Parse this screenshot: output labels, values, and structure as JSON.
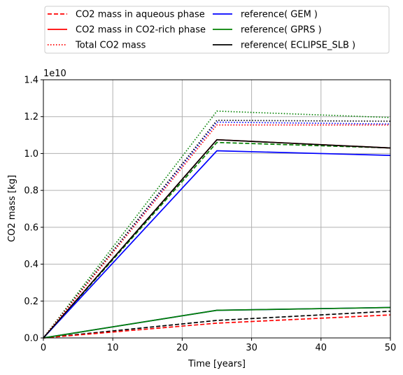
{
  "chart_data": {
    "type": "line",
    "xlabel": "Time [years]",
    "ylabel": "CO2 mass [kg]",
    "y_offset_text": "1e10",
    "xlim": [
      0,
      50
    ],
    "ylim": [
      0,
      1.4
    ],
    "xticks": [
      "0",
      "10",
      "20",
      "30",
      "40",
      "50"
    ],
    "yticks": [
      "0.0",
      "0.2",
      "0.4",
      "0.6",
      "0.8",
      "1.0",
      "1.2",
      "1.4"
    ],
    "grid": true,
    "legend_position": "top, above plot, two columns",
    "series": [
      {
        "name": "CO2 mass in aqueous phase",
        "color": "#ff0000",
        "style": "dashed",
        "x": [
          0,
          25,
          50
        ],
        "y": [
          0.0,
          0.08,
          0.125
        ]
      },
      {
        "name": "CO2 mass in CO2-rich phase",
        "color": "#ff0000",
        "style": "solid",
        "x": [
          0,
          25,
          50
        ],
        "y": [
          0.0,
          1.075,
          1.03
        ]
      },
      {
        "name": "Total CO2 mass",
        "color": "#ff0000",
        "style": "dotted",
        "x": [
          0,
          25,
          50
        ],
        "y": [
          0.0,
          1.155,
          1.155
        ]
      },
      {
        "name": "reference( GEM )",
        "color": "#0000ff",
        "style": "solid",
        "x": [
          0,
          25,
          50
        ],
        "y": [
          0.0,
          1.015,
          0.99
        ]
      },
      {
        "name": "reference( GPRS )",
        "color": "#008000",
        "style": "solid",
        "x": [
          0,
          25,
          50
        ],
        "y": [
          0.0,
          0.15,
          0.165
        ]
      },
      {
        "name": "reference( ECLIPSE_SLB )",
        "color": "#000000",
        "style": "solid",
        "x": [
          0,
          25,
          50
        ],
        "y": [
          0.0,
          1.075,
          1.03
        ]
      }
    ],
    "unlabeled_series": [
      {
        "color": "#0000ff",
        "style": "solid",
        "x": [
          0,
          25,
          50
        ],
        "y": [
          0.0,
          0.15,
          0.165
        ]
      },
      {
        "color": "#0000ff",
        "style": "dotted",
        "x": [
          0,
          25,
          50
        ],
        "y": [
          0.0,
          1.17,
          1.16
        ]
      },
      {
        "color": "#008000",
        "style": "dashed",
        "x": [
          0,
          25,
          50
        ],
        "y": [
          0.0,
          1.06,
          1.03
        ]
      },
      {
        "color": "#008000",
        "style": "dotted",
        "x": [
          0,
          25,
          50
        ],
        "y": [
          0.0,
          1.23,
          1.195
        ]
      },
      {
        "color": "#000000",
        "style": "dashed",
        "x": [
          0,
          25,
          50
        ],
        "y": [
          0.0,
          0.095,
          0.145
        ]
      },
      {
        "color": "#000000",
        "style": "dotted",
        "x": [
          0,
          25,
          50
        ],
        "y": [
          0.0,
          1.18,
          1.175
        ]
      }
    ]
  }
}
